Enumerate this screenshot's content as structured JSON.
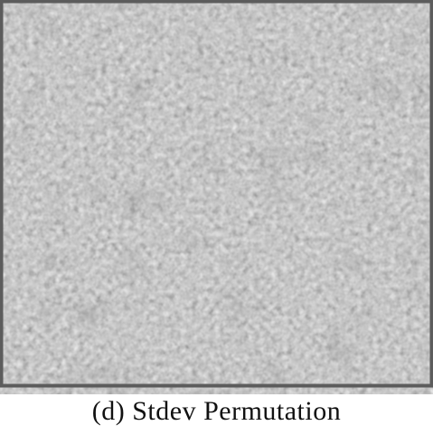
{
  "figure": {
    "caption": "(d) Stdev Permutation"
  }
}
